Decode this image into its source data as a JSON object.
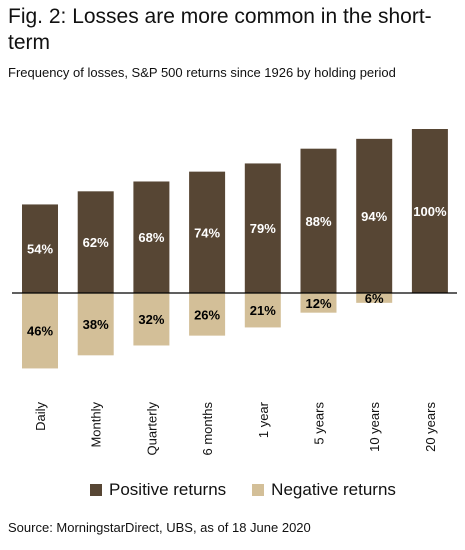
{
  "title": "Fig. 2: Losses are more common in the short-term",
  "subtitle": "Frequency of losses, S&P 500 returns since 1926 by holding period",
  "source": "Source: MorningstarDirect, UBS, as of 18 June 2020",
  "colors": {
    "positive": "#574634",
    "negative": "#d3bf98"
  },
  "chart_data": {
    "type": "bar",
    "stacked": "diverging",
    "categories": [
      "Daily",
      "Monthly",
      "Quarterly",
      "6 months",
      "1 year",
      "5 years",
      "10 years",
      "20 years"
    ],
    "series": [
      {
        "name": "Positive returns",
        "values": [
          54,
          62,
          68,
          74,
          79,
          88,
          94,
          100
        ],
        "labels": [
          "54%",
          "62%",
          "68%",
          "74%",
          "79%",
          "88%",
          "94%",
          "100%"
        ]
      },
      {
        "name": "Negative returns",
        "values": [
          46,
          38,
          32,
          26,
          21,
          12,
          6,
          0
        ],
        "labels": [
          "46%",
          "38%",
          "32%",
          "26%",
          "21%",
          "12%",
          "6%",
          ""
        ]
      }
    ],
    "legend_position": "bottom",
    "grid": false
  }
}
